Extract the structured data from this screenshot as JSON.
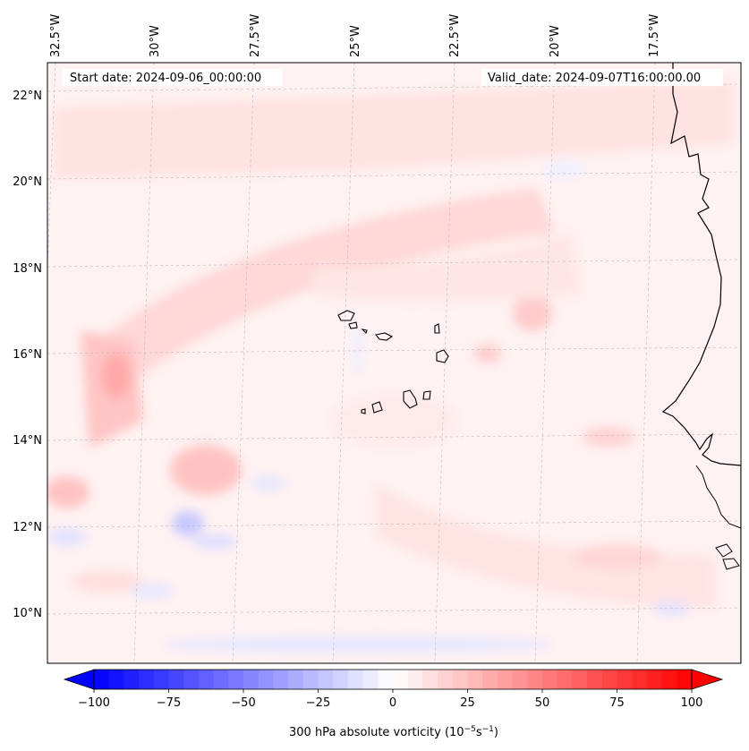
{
  "map": {
    "start_date": "Start date: 2024-09-06_00:00:00",
    "valid_date": "Valid_date: 2024-09-07T16:00:00.00",
    "lon_labels": [
      "32.5°W",
      "30°W",
      "27.5°W",
      "25°W",
      "22.5°W",
      "20°W",
      "17.5°W"
    ],
    "lat_labels": [
      "22°N",
      "20°N",
      "18°N",
      "16°N",
      "14°N",
      "12°N",
      "10°N"
    ],
    "field": "300 hPa absolute vorticity",
    "features": [
      "Cabo Verde islands",
      "West African coastline"
    ]
  },
  "colorbar": {
    "min": -100,
    "max": 100,
    "tick_values": [
      -100,
      -75,
      -50,
      -25,
      0,
      25,
      50,
      75,
      100
    ],
    "tick_labels": [
      "−100",
      "−75",
      "−50",
      "−25",
      "0",
      "25",
      "50",
      "75",
      "100"
    ],
    "label_prefix": "300 hPa absolute vorticity (10",
    "label_exp1": "−5",
    "label_mid": "s",
    "label_exp2": "−1",
    "label_suffix": ")",
    "colors": {
      "negative": "#0000ff",
      "zero": "#ffffff",
      "positive": "#ff0000"
    }
  }
}
